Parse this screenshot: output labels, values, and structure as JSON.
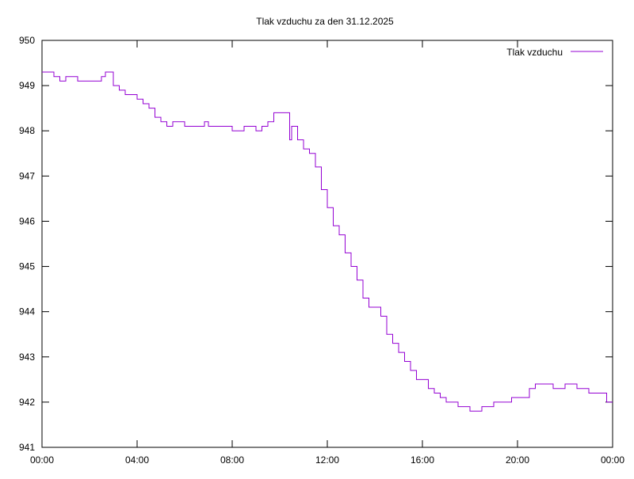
{
  "chart_data": {
    "type": "line",
    "title": "Tlak vzduchu za den 31.12.2025",
    "xlabel": "",
    "ylabel": "",
    "xlim": [
      "00:00",
      "24:00"
    ],
    "ylim": [
      941,
      950
    ],
    "x_ticks": [
      "00:00",
      "04:00",
      "08:00",
      "12:00",
      "16:00",
      "20:00",
      "00:00"
    ],
    "y_ticks": [
      941,
      942,
      943,
      944,
      945,
      946,
      947,
      948,
      949,
      950
    ],
    "grid": false,
    "legend_position": "top-right",
    "series": [
      {
        "name": "Tlak vzduchu",
        "color": "#9400d3",
        "x": [
          "00:00",
          "00:15",
          "00:30",
          "00:45",
          "01:00",
          "01:15",
          "01:30",
          "01:45",
          "02:00",
          "02:15",
          "02:30",
          "02:40",
          "03:00",
          "03:15",
          "03:30",
          "03:45",
          "04:00",
          "04:15",
          "04:30",
          "04:45",
          "05:00",
          "05:15",
          "05:30",
          "05:45",
          "06:00",
          "06:30",
          "06:50",
          "07:00",
          "07:30",
          "08:00",
          "08:30",
          "09:00",
          "09:15",
          "09:30",
          "09:45",
          "10:00",
          "10:15",
          "10:25",
          "10:30",
          "10:45",
          "11:00",
          "11:15",
          "11:30",
          "11:45",
          "12:00",
          "12:15",
          "12:30",
          "12:45",
          "13:00",
          "13:15",
          "13:30",
          "13:45",
          "14:00",
          "14:15",
          "14:30",
          "14:45",
          "15:00",
          "15:15",
          "15:30",
          "15:45",
          "16:00",
          "16:15",
          "16:30",
          "16:45",
          "17:00",
          "17:30",
          "18:00",
          "18:30",
          "19:00",
          "19:30",
          "19:45",
          "20:00",
          "20:15",
          "20:30",
          "20:45",
          "21:00",
          "21:15",
          "21:30",
          "22:00",
          "22:30",
          "22:45",
          "23:00",
          "23:30",
          "23:45",
          "24:00"
        ],
        "y": [
          949.3,
          949.3,
          949.2,
          949.1,
          949.2,
          949.2,
          949.1,
          949.1,
          949.1,
          949.1,
          949.2,
          949.3,
          949.0,
          948.9,
          948.8,
          948.8,
          948.7,
          948.6,
          948.5,
          948.3,
          948.2,
          948.1,
          948.2,
          948.2,
          948.1,
          948.1,
          948.2,
          948.1,
          948.1,
          948.0,
          948.1,
          948.0,
          948.1,
          948.2,
          948.4,
          948.4,
          948.4,
          947.8,
          948.1,
          947.8,
          947.6,
          947.5,
          947.2,
          946.7,
          946.3,
          945.9,
          945.7,
          945.3,
          945.0,
          944.7,
          944.3,
          944.1,
          944.1,
          943.9,
          943.5,
          943.3,
          943.1,
          942.9,
          942.7,
          942.5,
          942.5,
          942.3,
          942.2,
          942.1,
          942.0,
          941.9,
          941.8,
          941.9,
          942.0,
          942.0,
          942.1,
          942.1,
          942.1,
          942.3,
          942.4,
          942.4,
          942.4,
          942.3,
          942.4,
          942.3,
          942.3,
          942.2,
          942.2,
          942.0,
          942.0
        ]
      }
    ]
  }
}
